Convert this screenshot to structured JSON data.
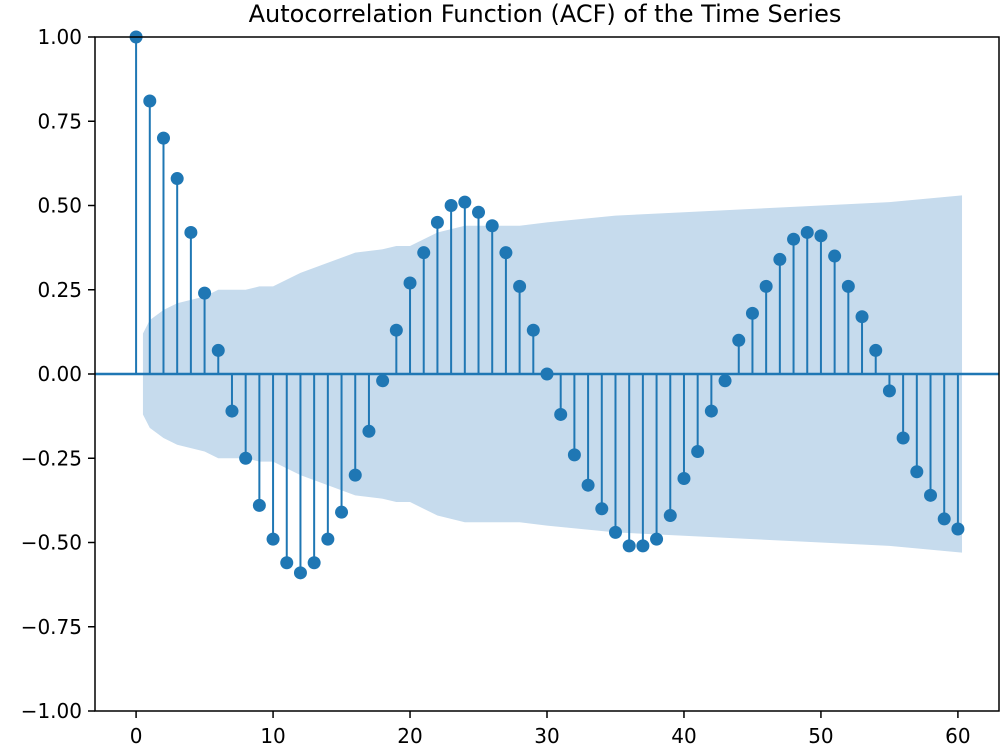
{
  "chart_data": {
    "type": "stem",
    "title": "Autocorrelation Function (ACF) of the Time Series",
    "xlabel": "",
    "ylabel": "",
    "xlim": [
      -3,
      63
    ],
    "ylim": [
      -1.0,
      1.0
    ],
    "x_ticks": [
      {
        "value": 0,
        "label": "0"
      },
      {
        "value": 10,
        "label": "10"
      },
      {
        "value": 20,
        "label": "20"
      },
      {
        "value": 30,
        "label": "30"
      },
      {
        "value": 40,
        "label": "40"
      },
      {
        "value": 50,
        "label": "50"
      },
      {
        "value": 60,
        "label": "60"
      }
    ],
    "y_ticks": [
      {
        "value": 1.0,
        "label": "1.00"
      },
      {
        "value": 0.75,
        "label": "0.75"
      },
      {
        "value": 0.5,
        "label": "0.50"
      },
      {
        "value": 0.25,
        "label": "0.25"
      },
      {
        "value": 0.0,
        "label": "0.00"
      },
      {
        "value": -0.25,
        "label": "−0.25"
      },
      {
        "value": -0.5,
        "label": "−0.50"
      },
      {
        "value": -0.75,
        "label": "−0.75"
      },
      {
        "value": -1.0,
        "label": "−1.00"
      }
    ],
    "grid": false,
    "colors": {
      "stem": "#1f77b4",
      "band": "#c6dbed"
    },
    "lags": [
      0,
      1,
      2,
      3,
      4,
      5,
      6,
      7,
      8,
      9,
      10,
      11,
      12,
      13,
      14,
      15,
      16,
      17,
      18,
      19,
      20,
      21,
      22,
      23,
      24,
      25,
      26,
      27,
      28,
      29,
      30,
      31,
      32,
      33,
      34,
      35,
      36,
      37,
      38,
      39,
      40,
      41,
      42,
      43,
      44,
      45,
      46,
      47,
      48,
      49,
      50,
      51,
      52,
      53,
      54,
      55,
      56,
      57,
      58,
      59,
      60
    ],
    "values": [
      1.0,
      0.81,
      0.7,
      0.58,
      0.42,
      0.24,
      0.07,
      -0.11,
      -0.25,
      -0.39,
      -0.49,
      -0.56,
      -0.59,
      -0.56,
      -0.49,
      -0.41,
      -0.3,
      -0.17,
      -0.02,
      0.13,
      0.27,
      0.36,
      0.45,
      0.5,
      0.51,
      0.48,
      0.44,
      0.36,
      0.26,
      0.13,
      0.0,
      -0.12,
      -0.24,
      -0.33,
      -0.4,
      -0.47,
      -0.51,
      -0.51,
      -0.49,
      -0.42,
      -0.31,
      -0.23,
      -0.11,
      -0.02,
      0.1,
      0.18,
      0.26,
      0.34,
      0.4,
      0.42,
      0.41,
      0.35,
      0.26,
      0.17,
      0.07,
      -0.05,
      -0.19,
      -0.29,
      -0.36,
      -0.43,
      -0.46
    ],
    "confidence_band": {
      "x": [
        0.5,
        1,
        2,
        3,
        4,
        5,
        6,
        7,
        8,
        9,
        10,
        12,
        14,
        16,
        18,
        19,
        20,
        22,
        24,
        26,
        28,
        30,
        35,
        40,
        45,
        50,
        55,
        60.3
      ],
      "upper": [
        0.12,
        0.16,
        0.19,
        0.21,
        0.22,
        0.23,
        0.25,
        0.25,
        0.25,
        0.26,
        0.26,
        0.3,
        0.33,
        0.36,
        0.37,
        0.38,
        0.38,
        0.42,
        0.44,
        0.44,
        0.44,
        0.45,
        0.47,
        0.48,
        0.49,
        0.5,
        0.51,
        0.53
      ],
      "lower": [
        -0.12,
        -0.16,
        -0.19,
        -0.21,
        -0.22,
        -0.23,
        -0.25,
        -0.25,
        -0.25,
        -0.26,
        -0.26,
        -0.3,
        -0.33,
        -0.36,
        -0.37,
        -0.38,
        -0.38,
        -0.42,
        -0.44,
        -0.44,
        -0.44,
        -0.45,
        -0.47,
        -0.48,
        -0.49,
        -0.5,
        -0.51,
        -0.53
      ]
    }
  }
}
